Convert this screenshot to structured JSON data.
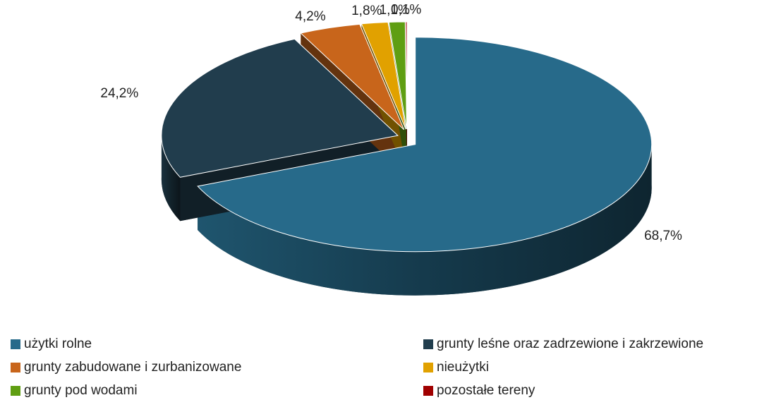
{
  "chart_data": {
    "type": "pie",
    "categories": [
      "użytki rolne",
      "grunty leśne oraz zadrzewione i zakrzewione",
      "grunty zabudowane i zurbanizowane",
      "nieużytki",
      "grunty pod wodami",
      "pozostałe tereny"
    ],
    "values": [
      68.7,
      24.2,
      4.2,
      1.8,
      1.1,
      0.1
    ],
    "value_labels": [
      "68,7%",
      "24,2%",
      "4,2%",
      "1,8%",
      "1,1%",
      "0,1%"
    ],
    "colors": [
      "#276a8a",
      "#213d4d",
      "#c8651b",
      "#e1a100",
      "#5f9e12",
      "#a00000"
    ]
  }
}
